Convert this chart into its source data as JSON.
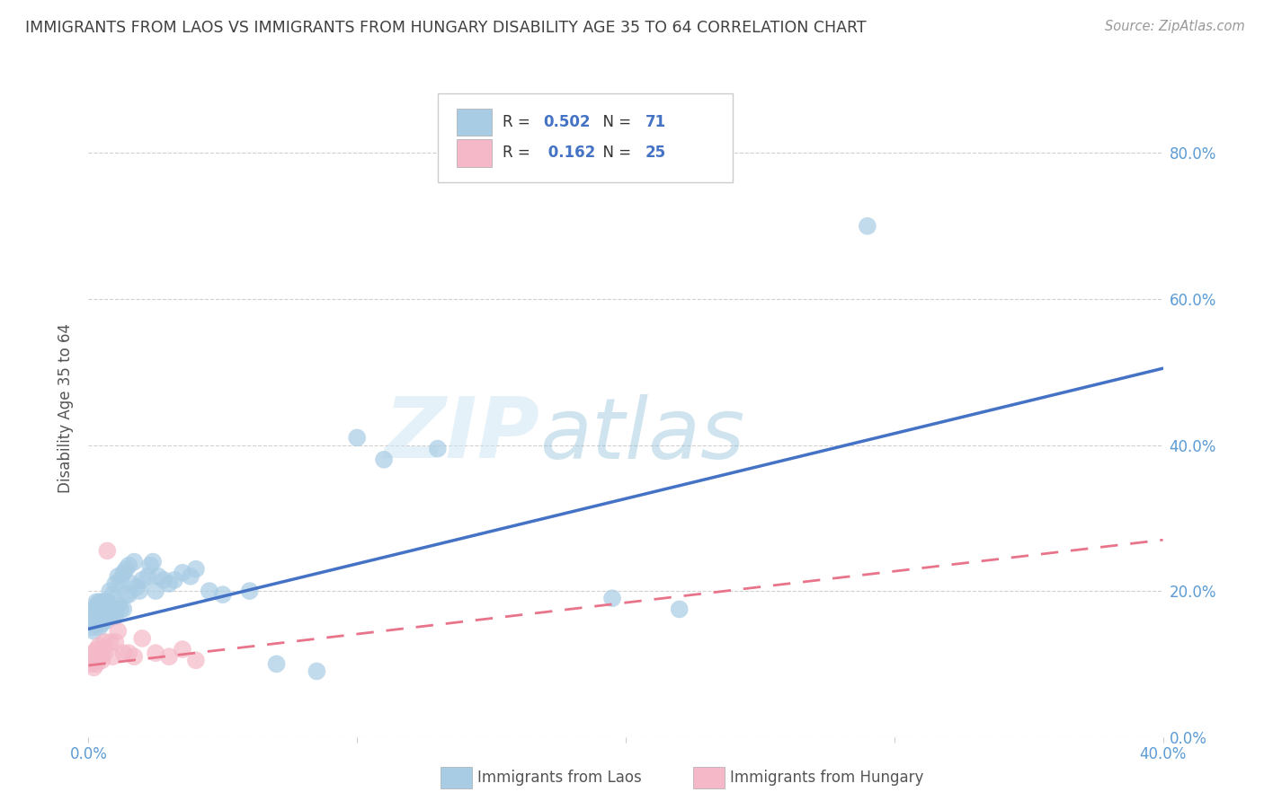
{
  "title": "IMMIGRANTS FROM LAOS VS IMMIGRANTS FROM HUNGARY DISABILITY AGE 35 TO 64 CORRELATION CHART",
  "source": "Source: ZipAtlas.com",
  "ylabel": "Disability Age 35 to 64",
  "xmin": 0.0,
  "xmax": 0.4,
  "ymin": 0.0,
  "ymax": 0.9,
  "yticks": [
    0.0,
    0.2,
    0.4,
    0.6,
    0.8
  ],
  "xticks": [
    0.0,
    0.1,
    0.2,
    0.3,
    0.4
  ],
  "legend_laos_R": "0.502",
  "legend_laos_N": "71",
  "legend_hungary_R": "0.162",
  "legend_hungary_N": "25",
  "color_laos": "#a8cce4",
  "color_hungary": "#f4b8c8",
  "color_laos_line": "#4472c4",
  "color_hungary_line": "#e8748a",
  "color_axis_labels": "#5b9bd5",
  "color_title": "#404040",
  "color_source": "#999999",
  "color_grid": "#d0d0d0",
  "trend_laos_x0": 0.0,
  "trend_laos_y0": 0.148,
  "trend_laos_x1": 0.4,
  "trend_laos_y1": 0.505,
  "trend_hungary_x0": 0.0,
  "trend_hungary_y0": 0.098,
  "trend_hungary_x1": 0.4,
  "trend_hungary_y1": 0.27,
  "laos_x": [
    0.001,
    0.001,
    0.002,
    0.002,
    0.002,
    0.002,
    0.003,
    0.003,
    0.003,
    0.003,
    0.003,
    0.004,
    0.004,
    0.004,
    0.004,
    0.005,
    0.005,
    0.005,
    0.005,
    0.006,
    0.006,
    0.006,
    0.007,
    0.007,
    0.007,
    0.008,
    0.008,
    0.008,
    0.009,
    0.009,
    0.009,
    0.01,
    0.01,
    0.01,
    0.011,
    0.011,
    0.012,
    0.012,
    0.013,
    0.013,
    0.014,
    0.014,
    0.015,
    0.015,
    0.016,
    0.017,
    0.018,
    0.019,
    0.02,
    0.022,
    0.023,
    0.024,
    0.025,
    0.026,
    0.028,
    0.03,
    0.032,
    0.035,
    0.038,
    0.04,
    0.045,
    0.05,
    0.06,
    0.07,
    0.085,
    0.1,
    0.11,
    0.13,
    0.195,
    0.22,
    0.29
  ],
  "laos_y": [
    0.15,
    0.16,
    0.145,
    0.155,
    0.17,
    0.175,
    0.155,
    0.16,
    0.17,
    0.18,
    0.185,
    0.15,
    0.165,
    0.175,
    0.185,
    0.155,
    0.165,
    0.175,
    0.185,
    0.16,
    0.17,
    0.185,
    0.16,
    0.175,
    0.185,
    0.165,
    0.175,
    0.2,
    0.165,
    0.175,
    0.195,
    0.165,
    0.175,
    0.21,
    0.18,
    0.22,
    0.175,
    0.215,
    0.175,
    0.225,
    0.195,
    0.23,
    0.195,
    0.235,
    0.21,
    0.24,
    0.205,
    0.2,
    0.215,
    0.22,
    0.235,
    0.24,
    0.2,
    0.22,
    0.215,
    0.21,
    0.215,
    0.225,
    0.22,
    0.23,
    0.2,
    0.195,
    0.2,
    0.1,
    0.09,
    0.41,
    0.38,
    0.395,
    0.19,
    0.175,
    0.7
  ],
  "hungary_x": [
    0.001,
    0.001,
    0.002,
    0.002,
    0.003,
    0.003,
    0.004,
    0.004,
    0.005,
    0.005,
    0.006,
    0.006,
    0.007,
    0.008,
    0.009,
    0.01,
    0.011,
    0.013,
    0.015,
    0.017,
    0.02,
    0.025,
    0.03,
    0.035,
    0.04
  ],
  "hungary_y": [
    0.1,
    0.11,
    0.095,
    0.115,
    0.1,
    0.12,
    0.11,
    0.125,
    0.105,
    0.12,
    0.115,
    0.13,
    0.255,
    0.13,
    0.11,
    0.13,
    0.145,
    0.115,
    0.115,
    0.11,
    0.135,
    0.115,
    0.11,
    0.12,
    0.105
  ],
  "figsize": [
    14.06,
    8.92
  ],
  "dpi": 100
}
